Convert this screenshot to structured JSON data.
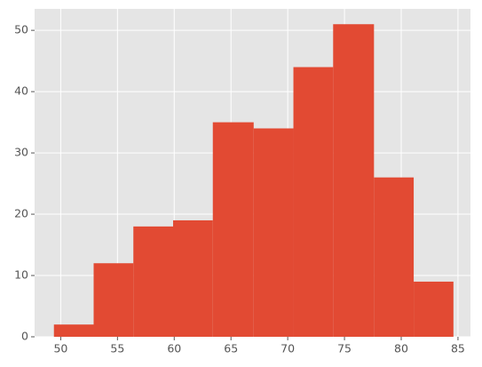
{
  "chart_data": {
    "type": "histogram",
    "bins": [
      49.4,
      52.9,
      56.4,
      59.9,
      63.4,
      67.0,
      70.5,
      74.0,
      77.6,
      81.1,
      84.6
    ],
    "values": [
      2,
      12,
      18,
      19,
      35,
      34,
      44,
      51,
      26,
      9
    ],
    "color": "#E24A33",
    "xlim": [
      47.7,
      86.1
    ],
    "xticks": [
      50,
      55,
      60,
      65,
      70,
      75,
      80,
      85
    ],
    "ylim": [
      0,
      53.5
    ],
    "yticks": [
      0,
      10,
      20,
      30,
      40,
      50
    ],
    "grid": true
  }
}
